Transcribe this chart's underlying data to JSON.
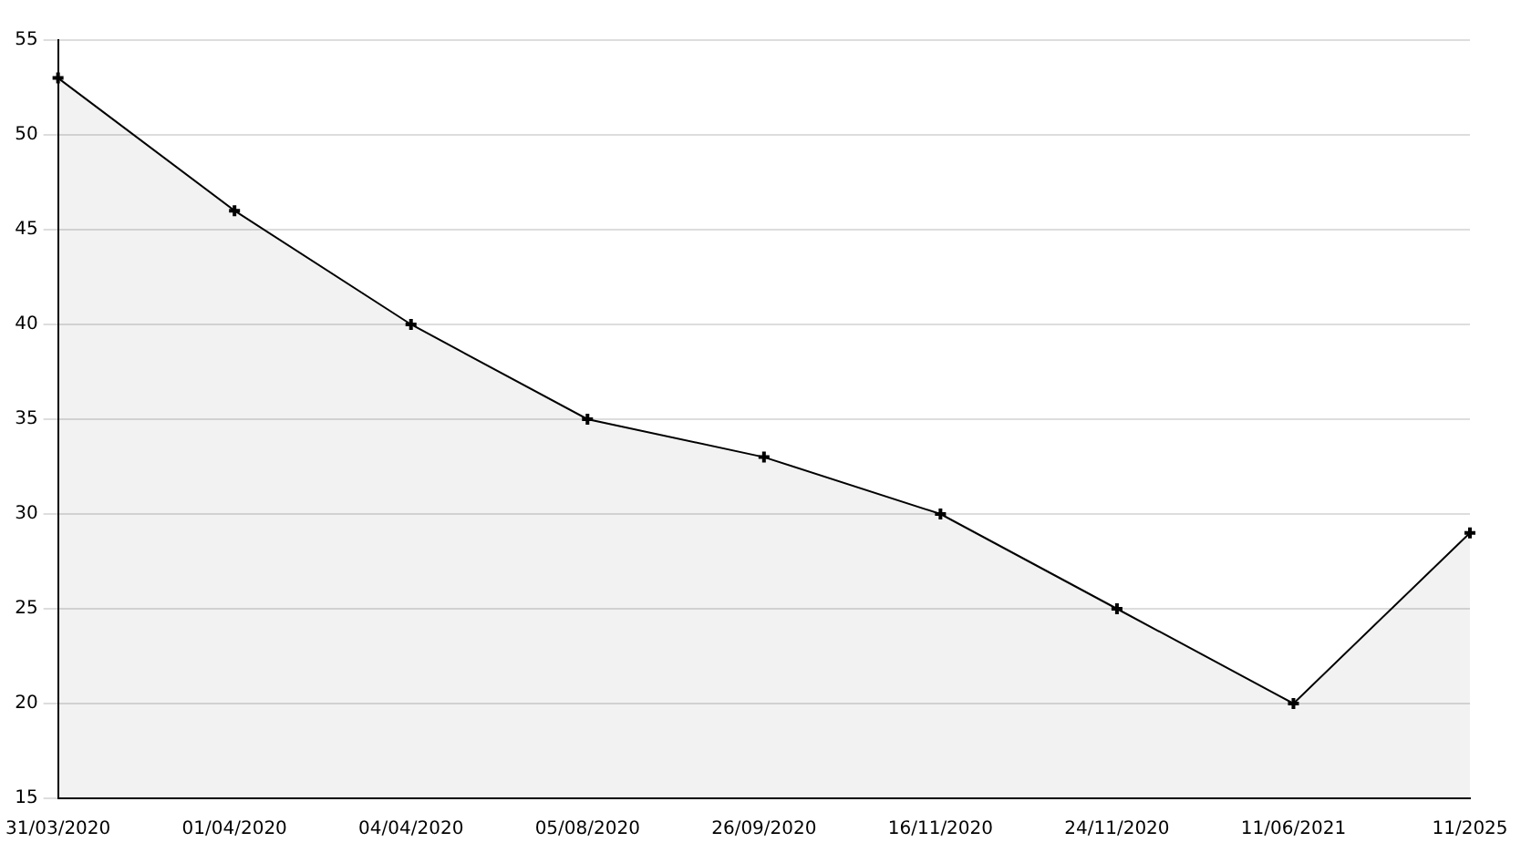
{
  "chart_data": {
    "type": "area",
    "categories": [
      "31/03/2020",
      "01/04/2020",
      "04/04/2020",
      "05/08/2020",
      "26/09/2020",
      "16/11/2020",
      "24/11/2020",
      "11/06/2021",
      "11/2025"
    ],
    "series": [
      {
        "color": "#000000",
        "values": [
          53,
          46,
          40,
          35,
          33,
          30,
          25,
          20,
          29
        ]
      }
    ],
    "ylim": [
      15,
      55
    ],
    "yticks": [
      15,
      20,
      25,
      30,
      35,
      40,
      45,
      50,
      55
    ],
    "grid": "y",
    "legend": false,
    "marker": "cross",
    "line_style": "solid"
  }
}
